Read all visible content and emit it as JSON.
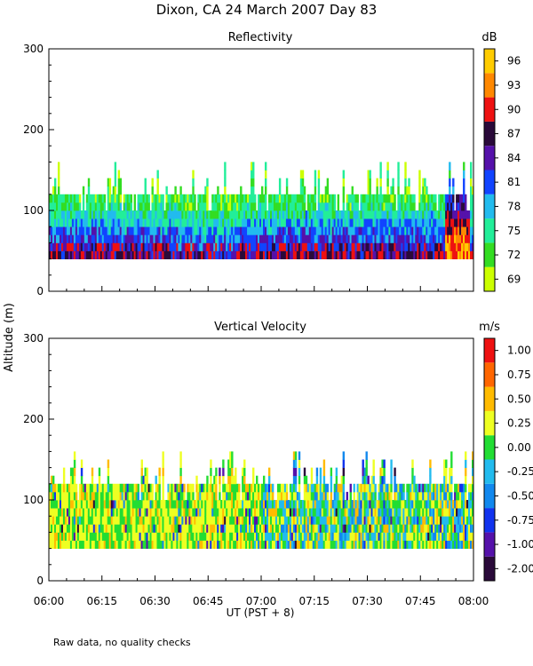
{
  "title": "Dixon, CA 24 March 2007  Day  83",
  "ylabel": "Altitude (m)",
  "xlabel": "UT  (PST + 8)",
  "footer": "Raw data, no quality checks",
  "x_ticks": [
    "06:00",
    "06:15",
    "06:30",
    "06:45",
    "07:00",
    "07:15",
    "07:30",
    "07:45",
    "08:00"
  ],
  "chart_data": [
    {
      "type": "heatmap",
      "title": "Reflectivity",
      "colorbar_unit": "dB",
      "xlabel": "UT  (PST + 8)",
      "ylabel": "Altitude (m)",
      "xlim": [
        "06:00",
        "08:00"
      ],
      "ylim": [
        0,
        300
      ],
      "y_ticks": [
        0,
        100,
        200,
        300
      ],
      "colorbar": {
        "labels": [
          "69",
          "72",
          "75",
          "78",
          "81",
          "84",
          "87",
          "90",
          "93",
          "96"
        ],
        "colors": [
          "#ccff00",
          "#33dd22",
          "#22ee99",
          "#22bbee",
          "#1144ff",
          "#5511aa",
          "#2a0a3a",
          "#ee1111",
          "#ff8800",
          "#ffcc00"
        ]
      },
      "data_extent": {
        "min_altitude": 40,
        "typical_top": 120,
        "max_top": 180
      }
    },
    {
      "type": "heatmap",
      "title": "Vertical Velocity",
      "colorbar_unit": "m/s",
      "xlabel": "UT  (PST + 8)",
      "ylabel": "Altitude (m)",
      "xlim": [
        "06:00",
        "08:00"
      ],
      "ylim": [
        0,
        300
      ],
      "y_ticks": [
        0,
        100,
        200,
        300
      ],
      "colorbar": {
        "labels": [
          "-2.00",
          "-1.00",
          "-0.75",
          "-0.50",
          "-0.25",
          "0.00",
          "0.25",
          "0.50",
          "0.75",
          "1.00"
        ],
        "colors": [
          "#2a0a3a",
          "#5511aa",
          "#1133ee",
          "#1188ee",
          "#22bbee",
          "#22dd33",
          "#eeff22",
          "#ffbb00",
          "#ff6600",
          "#ee1111"
        ]
      },
      "data_extent": {
        "min_altitude": 40,
        "typical_top": 120,
        "max_top": 180
      }
    }
  ]
}
